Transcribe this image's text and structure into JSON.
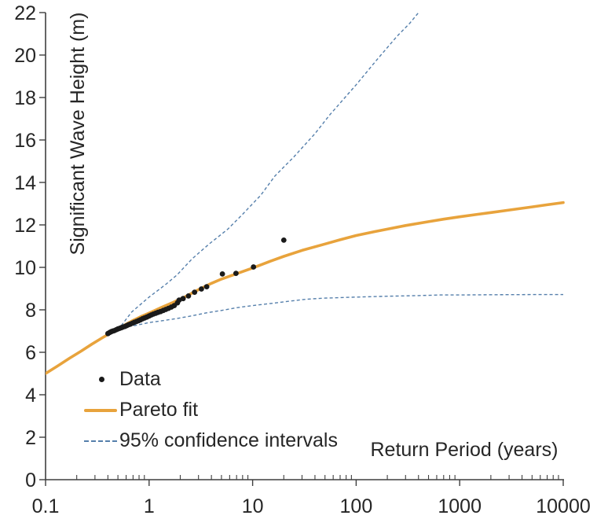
{
  "colors": {
    "background": "#ffffff",
    "axis": "#3f3f3f",
    "text": "#262626",
    "data_points": "#1a1a1a",
    "pareto_fit": "#E8A33C",
    "confidence_interval": "#557FAB"
  },
  "legend": {
    "items": [
      {
        "label": "Data",
        "marker": "dot-icon"
      },
      {
        "label": "Pareto fit",
        "marker": "solid-line-icon"
      },
      {
        "label": "95% confidence intervals",
        "marker": "dashed-line-icon"
      }
    ]
  },
  "chart_data": {
    "type": "line",
    "title": "",
    "xlabel": "Return Period (years)",
    "ylabel": "Significant Wave Height (m)",
    "x_scale": "log",
    "xlim": [
      0.1,
      10000
    ],
    "ylim": [
      0,
      22
    ],
    "x_ticks": [
      0.1,
      1,
      10,
      100,
      1000,
      10000
    ],
    "x_tick_labels": [
      "0.1",
      "1",
      "10",
      "100",
      "1000",
      "10000"
    ],
    "y_ticks": [
      0,
      2,
      4,
      6,
      8,
      10,
      12,
      14,
      16,
      18,
      20,
      22
    ],
    "grid": false,
    "legend_position": "inside lower left",
    "series": [
      {
        "name": "Data",
        "type": "scatter",
        "color": "#1a1a1a",
        "marker": "circle",
        "points": [
          [
            0.4,
            6.88
          ],
          [
            0.415,
            6.93
          ],
          [
            0.43,
            6.97
          ],
          [
            0.445,
            7.0
          ],
          [
            0.46,
            7.02
          ],
          [
            0.48,
            7.06
          ],
          [
            0.5,
            7.1
          ],
          [
            0.52,
            7.13
          ],
          [
            0.54,
            7.16
          ],
          [
            0.56,
            7.19
          ],
          [
            0.585,
            7.22
          ],
          [
            0.61,
            7.26
          ],
          [
            0.635,
            7.3
          ],
          [
            0.66,
            7.33
          ],
          [
            0.69,
            7.37
          ],
          [
            0.72,
            7.41
          ],
          [
            0.755,
            7.45
          ],
          [
            0.79,
            7.49
          ],
          [
            0.825,
            7.53
          ],
          [
            0.865,
            7.58
          ],
          [
            0.905,
            7.62
          ],
          [
            0.95,
            7.66
          ],
          [
            1.0,
            7.71
          ],
          [
            1.05,
            7.76
          ],
          [
            1.1,
            7.8
          ],
          [
            1.16,
            7.84
          ],
          [
            1.22,
            7.88
          ],
          [
            1.29,
            7.92
          ],
          [
            1.37,
            7.97
          ],
          [
            1.45,
            8.02
          ],
          [
            1.54,
            8.07
          ],
          [
            1.64,
            8.13
          ],
          [
            1.75,
            8.2
          ],
          [
            1.88,
            8.33
          ],
          [
            1.95,
            8.46
          ],
          [
            2.13,
            8.53
          ],
          [
            2.4,
            8.65
          ],
          [
            2.75,
            8.83
          ],
          [
            3.2,
            8.98
          ],
          [
            3.6,
            9.09
          ],
          [
            5.1,
            9.69
          ],
          [
            6.9,
            9.72
          ],
          [
            10.2,
            10.02
          ],
          [
            20,
            11.28
          ]
        ]
      },
      {
        "name": "Pareto fit",
        "type": "line",
        "color": "#E8A33C",
        "stroke_width": 3.6,
        "points": [
          [
            0.1,
            5.0
          ],
          [
            0.13,
            5.35
          ],
          [
            0.17,
            5.72
          ],
          [
            0.22,
            6.05
          ],
          [
            0.28,
            6.38
          ],
          [
            0.35,
            6.67
          ],
          [
            0.45,
            6.98
          ],
          [
            0.55,
            7.22
          ],
          [
            0.7,
            7.5
          ],
          [
            0.85,
            7.7
          ],
          [
            1,
            7.85
          ],
          [
            1.3,
            8.1
          ],
          [
            1.7,
            8.35
          ],
          [
            2.2,
            8.6
          ],
          [
            3,
            8.95
          ],
          [
            4,
            9.25
          ],
          [
            5,
            9.45
          ],
          [
            7,
            9.7
          ],
          [
            10,
            9.97
          ],
          [
            15,
            10.3
          ],
          [
            20,
            10.52
          ],
          [
            30,
            10.8
          ],
          [
            50,
            11.1
          ],
          [
            70,
            11.3
          ],
          [
            100,
            11.5
          ],
          [
            150,
            11.68
          ],
          [
            200,
            11.8
          ],
          [
            300,
            11.97
          ],
          [
            500,
            12.15
          ],
          [
            700,
            12.27
          ],
          [
            1000,
            12.38
          ],
          [
            1500,
            12.5
          ],
          [
            2000,
            12.58
          ],
          [
            3000,
            12.7
          ],
          [
            5000,
            12.85
          ],
          [
            7000,
            12.95
          ],
          [
            10000,
            13.05
          ]
        ]
      },
      {
        "name": "95% confidence interval (upper)",
        "type": "line",
        "dashed": true,
        "color": "#557FAB",
        "stroke_width": 1.4,
        "points": [
          [
            0.5,
            7.05
          ],
          [
            0.68,
            7.9
          ],
          [
            1,
            8.6
          ],
          [
            1.45,
            9.2
          ],
          [
            1.87,
            9.65
          ],
          [
            2.6,
            10.4
          ],
          [
            3.8,
            11.1
          ],
          [
            5.76,
            11.8
          ],
          [
            8,
            12.5
          ],
          [
            12,
            13.4
          ],
          [
            16.4,
            14.3
          ],
          [
            25,
            15.2
          ],
          [
            40,
            16.3
          ],
          [
            56,
            17.2
          ],
          [
            100,
            18.6
          ],
          [
            160,
            19.8
          ],
          [
            250,
            20.9
          ],
          [
            330,
            21.5
          ],
          [
            400,
            22.0
          ],
          [
            430,
            22.3
          ]
        ]
      },
      {
        "name": "95% confidence interval (lower)",
        "type": "line",
        "dashed": true,
        "color": "#557FAB",
        "stroke_width": 1.4,
        "points": [
          [
            0.5,
            7.05
          ],
          [
            0.62,
            7.2
          ],
          [
            0.8,
            7.3
          ],
          [
            1,
            7.4
          ],
          [
            1.4,
            7.5
          ],
          [
            1.9,
            7.6
          ],
          [
            2.6,
            7.72
          ],
          [
            3.5,
            7.85
          ],
          [
            5,
            7.97
          ],
          [
            7,
            8.1
          ],
          [
            10,
            8.2
          ],
          [
            15,
            8.3
          ],
          [
            22,
            8.4
          ],
          [
            33,
            8.5
          ],
          [
            50,
            8.55
          ],
          [
            100,
            8.6
          ],
          [
            200,
            8.64
          ],
          [
            400,
            8.67
          ],
          [
            650,
            8.7
          ],
          [
            1000,
            8.7
          ],
          [
            2000,
            8.71
          ],
          [
            5000,
            8.72
          ],
          [
            10000,
            8.72
          ]
        ]
      }
    ]
  }
}
